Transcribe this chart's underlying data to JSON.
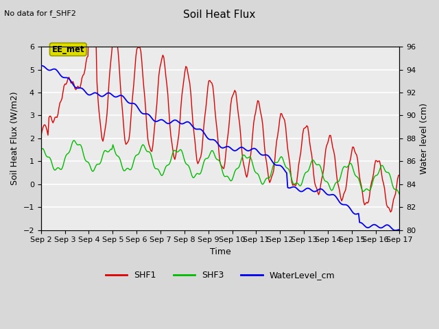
{
  "title": "Soil Heat Flux",
  "subtitle": "No data for f_SHF2",
  "xlabel": "Time",
  "ylabel_left": "Soil Heat Flux (W/m2)",
  "ylabel_right": "Water level (cm)",
  "ylim_left": [
    -2.0,
    6.0
  ],
  "ylim_right": [
    80,
    96
  ],
  "yticks_left": [
    -2.0,
    -1.0,
    0.0,
    1.0,
    2.0,
    3.0,
    4.0,
    5.0,
    6.0
  ],
  "yticks_right": [
    80,
    82,
    84,
    86,
    88,
    90,
    92,
    94,
    96
  ],
  "xtick_labels": [
    "Sep 2",
    "Sep 3",
    "Sep 4",
    "Sep 5",
    "Sep 6",
    "Sep 7",
    "Sep 8",
    "Sep 9",
    "Sep 10",
    "Sep 11",
    "Sep 12",
    "Sep 13",
    "Sep 14",
    "Sep 15",
    "Sep 16",
    "Sep 17"
  ],
  "bg_color": "#d8d8d8",
  "plot_bg_color": "#ebebeb",
  "grid_color": "#ffffff",
  "line_colors": {
    "SHF1": "#dd0000",
    "SHF3": "#00bb00",
    "WaterLevel_cm": "#0000ee"
  },
  "annotation_text": "EE_met",
  "annotation_box_facecolor": "#dddd00",
  "annotation_box_edgecolor": "#999900",
  "title_fontsize": 11,
  "axis_fontsize": 9,
  "tick_fontsize": 8
}
